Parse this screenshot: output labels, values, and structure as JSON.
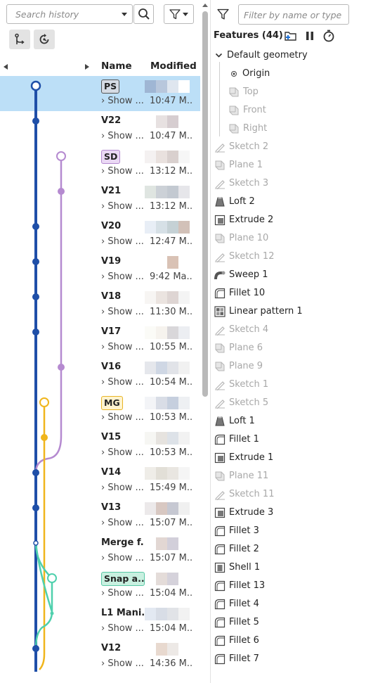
{
  "history": {
    "search_placeholder": "Search history",
    "columns": {
      "name": "Name",
      "modified": "Modified"
    },
    "show_label": "Show ...",
    "rows": [
      {
        "name": "PS",
        "tag": "ps",
        "time": "10:47 M...",
        "selected": true
      },
      {
        "name": "V22",
        "time": "10:47 M..."
      },
      {
        "name": "SD",
        "tag": "sd",
        "time": "13:12 M..."
      },
      {
        "name": "V21",
        "time": "13:12 M..."
      },
      {
        "name": "V20",
        "time": "12:47 M..."
      },
      {
        "name": "V19",
        "time": "9:42 Ma..."
      },
      {
        "name": "V18",
        "time": "11:30 M..."
      },
      {
        "name": "V17",
        "time": "10:55 M..."
      },
      {
        "name": "V16",
        "time": "10:54 M..."
      },
      {
        "name": "MG",
        "tag": "mg",
        "time": "10:53 M..."
      },
      {
        "name": "V15",
        "time": "10:53 M..."
      },
      {
        "name": "V14",
        "time": "15:49 M..."
      },
      {
        "name": "V13",
        "time": "15:07 M..."
      },
      {
        "name": "Merge f...",
        "time": "15:07 M..."
      },
      {
        "name": "Snap a...",
        "tag": "sn",
        "time": "15:04 M..."
      },
      {
        "name": "L1 Mani...",
        "time": "15:04 M..."
      },
      {
        "name": "V12",
        "time": "14:36 M..."
      }
    ]
  },
  "features": {
    "filter_placeholder": "Filter by name or type",
    "header": "Features (44)",
    "group": "Default geometry",
    "origin": "Origin",
    "planes": [
      "Top",
      "Front",
      "Right"
    ],
    "items": [
      {
        "label": "Sketch 2",
        "icon": "sketch-icon",
        "dim": true
      },
      {
        "label": "Plane 1",
        "icon": "plane-icon",
        "dim": true
      },
      {
        "label": "Sketch 3",
        "icon": "sketch-icon",
        "dim": true
      },
      {
        "label": "Loft 2",
        "icon": "loft-icon",
        "dim": false
      },
      {
        "label": "Extrude 2",
        "icon": "extrude-icon",
        "dim": false
      },
      {
        "label": "Plane 10",
        "icon": "plane-icon",
        "dim": true
      },
      {
        "label": "Sketch 12",
        "icon": "sketch-icon",
        "dim": true
      },
      {
        "label": "Sweep 1",
        "icon": "sweep-icon",
        "dim": false
      },
      {
        "label": "Fillet 10",
        "icon": "fillet-icon",
        "dim": false
      },
      {
        "label": "Linear pattern 1",
        "icon": "pattern-icon",
        "dim": false
      },
      {
        "label": "Sketch 4",
        "icon": "sketch-icon",
        "dim": true
      },
      {
        "label": "Plane 6",
        "icon": "plane-icon",
        "dim": true
      },
      {
        "label": "Plane 9",
        "icon": "plane-icon",
        "dim": true
      },
      {
        "label": "Sketch 1",
        "icon": "sketch-icon",
        "dim": true
      },
      {
        "label": "Sketch 5",
        "icon": "sketch-icon",
        "dim": true
      },
      {
        "label": "Loft 1",
        "icon": "loft-icon",
        "dim": false
      },
      {
        "label": "Fillet 1",
        "icon": "fillet-icon",
        "dim": false
      },
      {
        "label": "Extrude 1",
        "icon": "extrude-icon",
        "dim": false
      },
      {
        "label": "Plane 11",
        "icon": "plane-icon",
        "dim": true
      },
      {
        "label": "Sketch 11",
        "icon": "sketch-icon",
        "dim": true
      },
      {
        "label": "Extrude 3",
        "icon": "extrude-icon",
        "dim": false
      },
      {
        "label": "Fillet 3",
        "icon": "fillet-icon",
        "dim": false
      },
      {
        "label": "Fillet 2",
        "icon": "fillet-icon",
        "dim": false
      },
      {
        "label": "Shell 1",
        "icon": "shell-icon",
        "dim": false
      },
      {
        "label": "Fillet 13",
        "icon": "fillet-icon",
        "dim": false
      },
      {
        "label": "Fillet 4",
        "icon": "fillet-icon",
        "dim": false
      },
      {
        "label": "Fillet 5",
        "icon": "fillet-icon",
        "dim": false
      },
      {
        "label": "Fillet 6",
        "icon": "fillet-icon",
        "dim": false
      },
      {
        "label": "Fillet 7",
        "icon": "fillet-icon",
        "dim": false
      }
    ]
  },
  "colors": {
    "selection": "#bcdff7",
    "branch_main": "#1f4fa8",
    "branch_purple": "#b58ad0",
    "branch_yellow": "#f0b51c",
    "branch_teal": "#4fd0ad"
  }
}
